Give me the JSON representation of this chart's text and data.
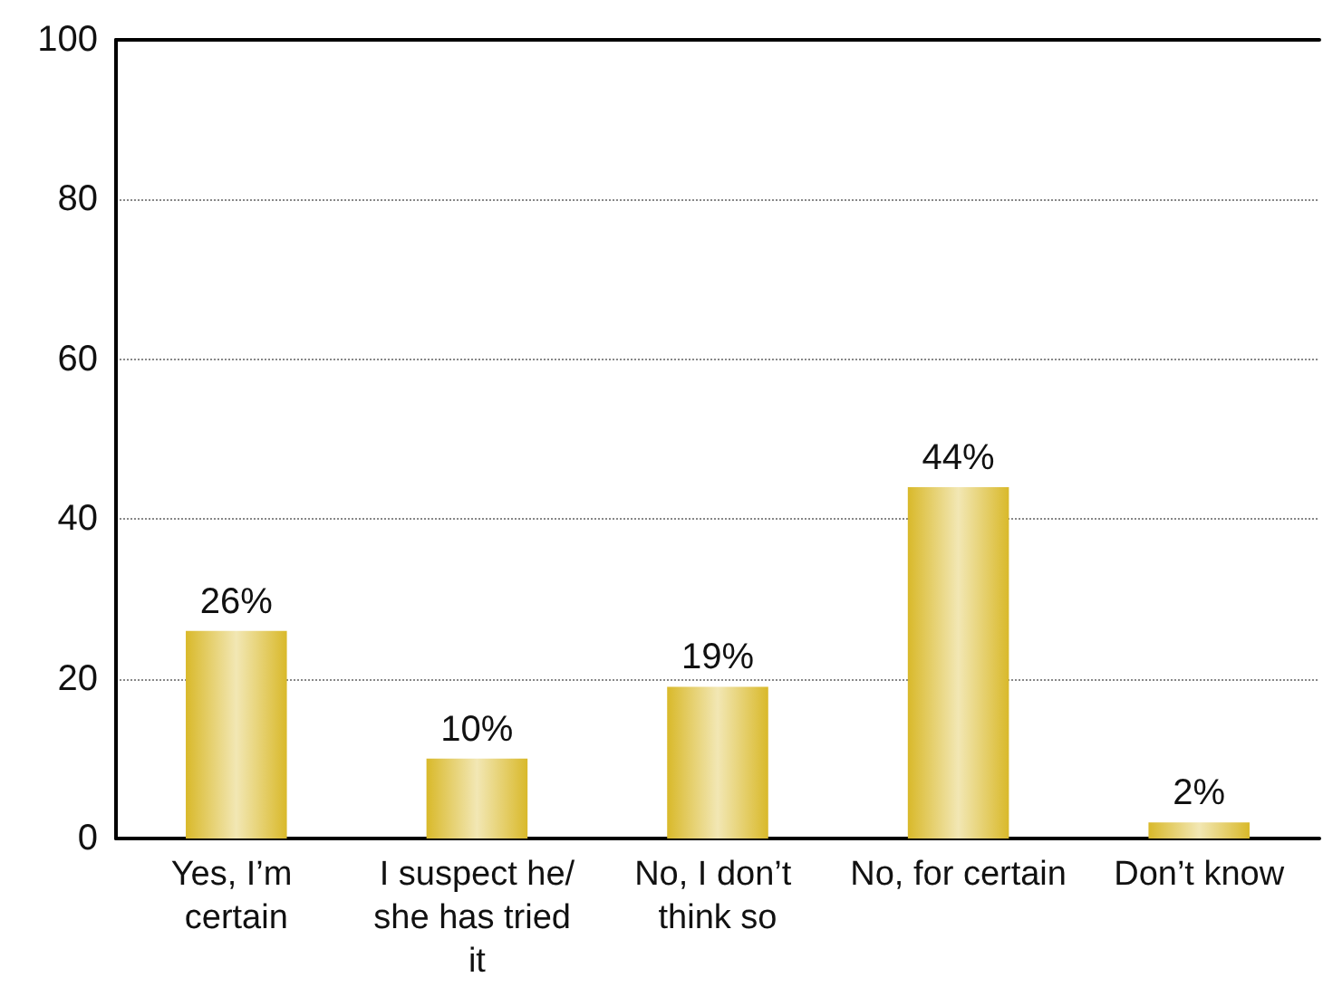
{
  "chart_data": {
    "type": "bar",
    "categories": [
      "Yes, I’m certain",
      "I suspect he/she has tried it",
      "No, I don’t think so",
      "No, for certain",
      "Don’t know"
    ],
    "values": [
      26,
      10,
      19,
      44,
      2
    ],
    "value_labels": [
      "26%",
      "10%",
      "19%",
      "44%",
      "2%"
    ],
    "color": "#d9b92a",
    "ylim": [
      0,
      100
    ],
    "yticks": [
      0,
      20,
      40,
      60,
      80,
      100
    ],
    "grid": "y"
  }
}
